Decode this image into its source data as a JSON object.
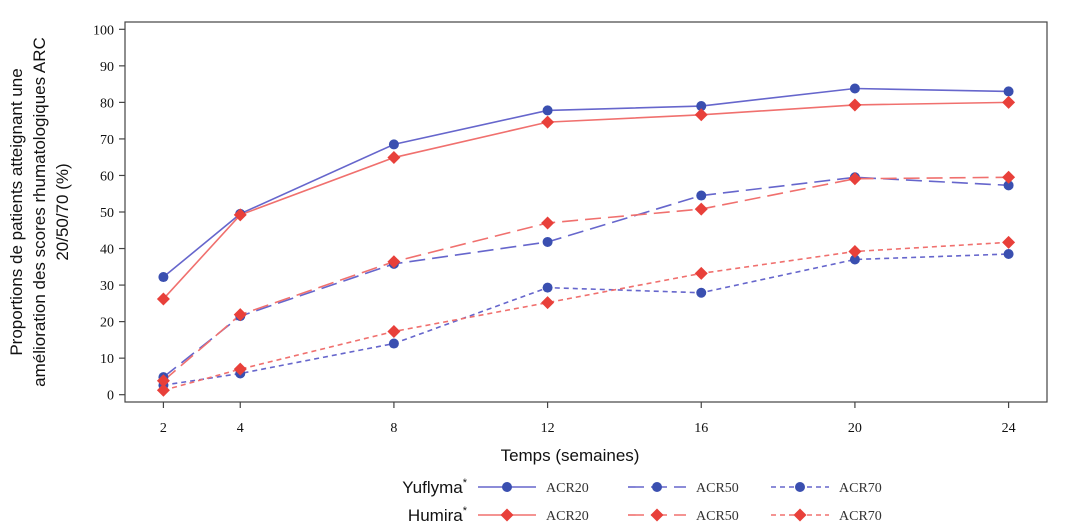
{
  "chart_data": {
    "type": "line",
    "title": "",
    "ylabel_lines": [
      "Proportions de patients atteignant une",
      "amélioration des scores rhumatologiques ARC",
      "20/50/70 (%)"
    ],
    "xlabel": "Temps (semaines)",
    "x": [
      2,
      4,
      8,
      12,
      16,
      20,
      24
    ],
    "xlim": [
      1,
      25
    ],
    "ylim": [
      -2,
      102
    ],
    "yticks": [
      0,
      10,
      20,
      30,
      40,
      50,
      60,
      70,
      80,
      90,
      100
    ],
    "grid": false,
    "legend_position": "bottom",
    "legend_groups": [
      {
        "name": "Yuflyma",
        "sup": "*",
        "color": "#6666cc",
        "marker_color": "#3a4fb0",
        "marker": "circle"
      },
      {
        "name": "Humira",
        "sup": "*",
        "color": "#f0706e",
        "marker_color": "#e8403a",
        "marker": "diamond"
      }
    ],
    "series": [
      {
        "group": "Yuflyma",
        "name": "ACR20",
        "style": "solid",
        "values": [
          32.2,
          49.5,
          68.5,
          77.8,
          79.0,
          83.8,
          83.0
        ]
      },
      {
        "group": "Yuflyma",
        "name": "ACR50",
        "style": "dashed",
        "values": [
          4.8,
          21.5,
          35.8,
          41.8,
          54.5,
          59.5,
          57.3
        ]
      },
      {
        "group": "Yuflyma",
        "name": "ACR70",
        "style": "dotted",
        "values": [
          2.6,
          5.8,
          14.0,
          29.3,
          27.9,
          37.0,
          38.5
        ]
      },
      {
        "group": "Humira",
        "name": "ACR20",
        "style": "solid",
        "values": [
          26.2,
          49.2,
          64.9,
          74.6,
          76.6,
          79.3,
          80.0
        ]
      },
      {
        "group": "Humira",
        "name": "ACR50",
        "style": "dashed",
        "values": [
          3.8,
          21.9,
          36.4,
          47.0,
          50.8,
          59.1,
          59.5
        ]
      },
      {
        "group": "Humira",
        "name": "ACR70",
        "style": "dotted",
        "values": [
          1.2,
          7.0,
          17.3,
          25.2,
          33.2,
          39.2,
          41.7
        ]
      }
    ]
  }
}
